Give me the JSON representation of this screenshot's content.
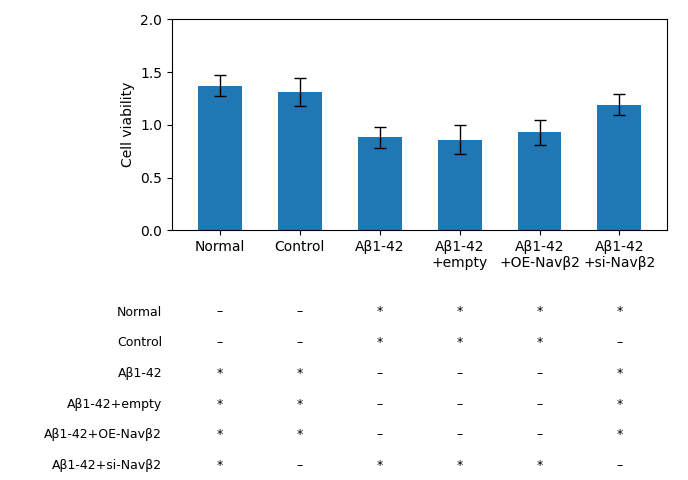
{
  "chart_data": {
    "type": "bar",
    "categories": [
      "Normal",
      "Control",
      "Aβ1-42",
      "Aβ1-42\n+empty",
      "Aβ1-42\n+OE-Navβ2",
      "Aβ1-42\n+si-Navβ2"
    ],
    "values": [
      1.37,
      1.31,
      0.88,
      0.86,
      0.93,
      1.19
    ],
    "errors": [
      0.1,
      0.13,
      0.1,
      0.14,
      0.12,
      0.1
    ],
    "y_label": "Cell viability",
    "ylim": [
      0.0,
      2.0
    ],
    "yticks": [
      0.0,
      0.5,
      1.0,
      1.5,
      2.0
    ],
    "table": {
      "row_labels": [
        "Normal",
        "Control",
        "Aβ1-42",
        "Aβ1-42+empty",
        "Aβ1-42+OE-Navβ2",
        "Aβ1-42+si-Navβ2"
      ],
      "cells": [
        [
          "–",
          "–",
          "*",
          "*",
          "*",
          "*"
        ],
        [
          "–",
          "–",
          "*",
          "*",
          "*",
          "–"
        ],
        [
          "*",
          "*",
          "–",
          "–",
          "–",
          "*"
        ],
        [
          "*",
          "*",
          "–",
          "–",
          "–",
          "*"
        ],
        [
          "*",
          "*",
          "–",
          "–",
          "–",
          "*"
        ],
        [
          "*",
          "–",
          "*",
          "*",
          "*",
          "–"
        ]
      ]
    }
  }
}
